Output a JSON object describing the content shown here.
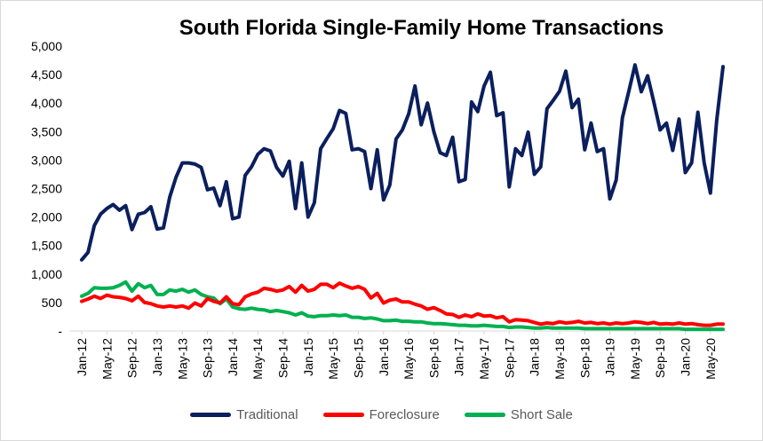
{
  "chart_data": {
    "type": "line",
    "title": "South Florida Single-Family Home Transactions",
    "xlabel": "",
    "ylabel": "",
    "ylim": [
      0,
      5000
    ],
    "y_ticks": [
      0,
      500,
      1000,
      1500,
      2000,
      2500,
      3000,
      3500,
      4000,
      4500,
      5000
    ],
    "y_tick_labels": [
      "-",
      "500",
      "1,000",
      "1,500",
      "2,000",
      "2,500",
      "3,000",
      "3,500",
      "4,000",
      "4,500",
      "5,000"
    ],
    "x_tick_labels": [
      "Jan-12",
      "May-12",
      "Sep-12",
      "Jan-13",
      "May-13",
      "Sep-13",
      "Jan-14",
      "May-14",
      "Sep-14",
      "Jan-15",
      "May-15",
      "Sep-15",
      "Jan-16",
      "May-16",
      "Sep-16",
      "Jan-17",
      "May-17",
      "Sep-17",
      "Jan-18",
      "May-18",
      "Sep-18",
      "Jan-19",
      "May-19",
      "Sep-19",
      "Jan-20",
      "May-20"
    ],
    "x_tick_step_months": 4,
    "grid": "none",
    "legend_position": "bottom",
    "series": [
      {
        "name": "Traditional",
        "color": "#0b1f5e",
        "values": [
          1250,
          1380,
          1850,
          2050,
          2150,
          2220,
          2120,
          2200,
          1780,
          2050,
          2080,
          2180,
          1790,
          1810,
          2350,
          2700,
          2950,
          2950,
          2930,
          2870,
          2480,
          2510,
          2200,
          2620,
          1970,
          2000,
          2730,
          2880,
          3100,
          3200,
          3160,
          2870,
          2720,
          2980,
          2150,
          2950,
          2000,
          2250,
          3200,
          3380,
          3550,
          3870,
          3820,
          3180,
          3200,
          3150,
          2500,
          3180,
          2300,
          2560,
          3370,
          3530,
          3810,
          4300,
          3620,
          4000,
          3500,
          3130,
          3080,
          3400,
          2620,
          2660,
          4020,
          3850,
          4300,
          4540,
          3780,
          3830,
          2530,
          3200,
          3080,
          3490,
          2750,
          2880,
          3900,
          4050,
          4210,
          4560,
          3920,
          4070,
          3180,
          3650,
          3150,
          3200,
          2320,
          2650,
          3740,
          4200,
          4670,
          4200,
          4480,
          4020,
          3530,
          3650,
          3170,
          3720,
          2780,
          2950,
          3840,
          2950,
          2420,
          3700,
          4640
        ]
      },
      {
        "name": "Foreclosure",
        "color": "#ff0000",
        "values": [
          520,
          560,
          610,
          570,
          630,
          600,
          590,
          570,
          530,
          610,
          500,
          480,
          440,
          420,
          440,
          420,
          440,
          400,
          490,
          440,
          570,
          520,
          490,
          600,
          480,
          460,
          600,
          650,
          680,
          750,
          730,
          700,
          720,
          780,
          680,
          800,
          700,
          730,
          820,
          820,
          760,
          840,
          790,
          750,
          780,
          730,
          580,
          660,
          490,
          540,
          560,
          510,
          510,
          470,
          440,
          380,
          410,
          360,
          300,
          290,
          240,
          280,
          250,
          300,
          260,
          270,
          230,
          250,
          160,
          200,
          190,
          180,
          150,
          120,
          140,
          130,
          160,
          140,
          150,
          170,
          140,
          150,
          130,
          140,
          120,
          140,
          130,
          140,
          160,
          150,
          130,
          150,
          120,
          130,
          120,
          140,
          120,
          130,
          110,
          100,
          100,
          120,
          120
        ]
      },
      {
        "name": "Short Sale",
        "color": "#00b050",
        "values": [
          610,
          660,
          760,
          750,
          750,
          760,
          800,
          860,
          700,
          830,
          760,
          800,
          640,
          640,
          720,
          700,
          730,
          680,
          720,
          640,
          600,
          580,
          480,
          560,
          420,
          390,
          380,
          400,
          380,
          370,
          340,
          360,
          340,
          320,
          280,
          320,
          260,
          250,
          270,
          270,
          280,
          270,
          280,
          240,
          240,
          220,
          230,
          210,
          180,
          180,
          190,
          170,
          170,
          160,
          160,
          140,
          130,
          130,
          120,
          110,
          100,
          100,
          90,
          90,
          100,
          90,
          80,
          80,
          60,
          70,
          70,
          60,
          50,
          50,
          60,
          50,
          50,
          50,
          50,
          50,
          40,
          40,
          40,
          40,
          40,
          40,
          40,
          40,
          40,
          40,
          40,
          40,
          40,
          40,
          40,
          40,
          30,
          30,
          30,
          30,
          30,
          30,
          30
        ]
      }
    ]
  }
}
